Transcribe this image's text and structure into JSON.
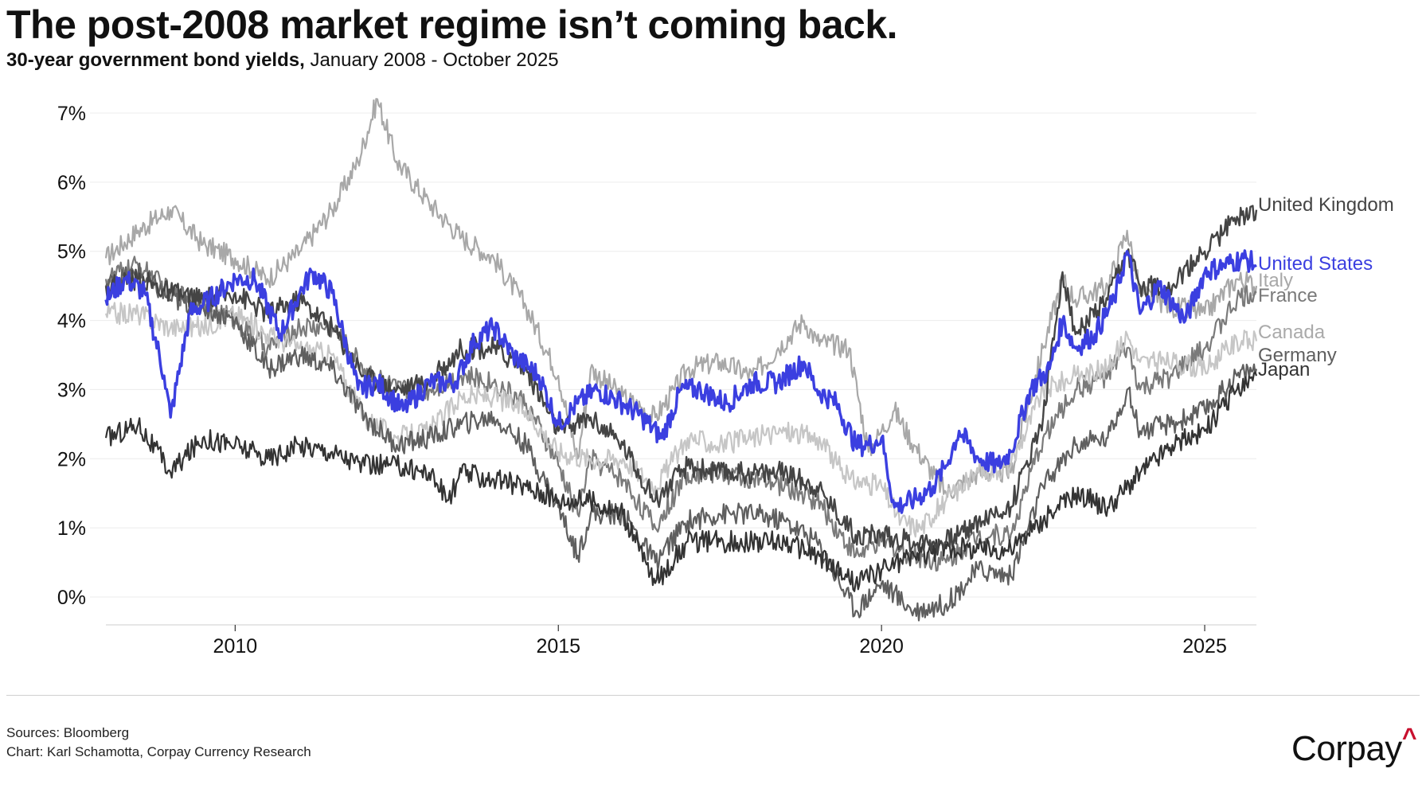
{
  "header": {
    "title": "The post-2008 market regime isn’t coming back.",
    "subtitle_bold": "30-year government bond yields,",
    "subtitle_rest": " January 2008 - October 2025"
  },
  "footer": {
    "sources": "Sources: Bloomberg",
    "credit": "Chart: Karl Schamotta, Corpay Currency Research"
  },
  "logo": {
    "text": "Corpay",
    "caret": "^"
  },
  "chart_data": {
    "type": "line",
    "title": "The post-2008 market regime isn’t coming back.",
    "subtitle": "30-year government bond yields, January 2008 - October 2025",
    "x_range": [
      2008.0,
      2025.8
    ],
    "y_range": [
      -0.3,
      7.2
    ],
    "y_ticks": [
      0,
      1,
      2,
      3,
      4,
      5,
      6,
      7
    ],
    "y_tick_labels": [
      "0%",
      "1%",
      "2%",
      "3%",
      "4%",
      "5%",
      "6%",
      "7%"
    ],
    "x_ticks": [
      2010,
      2015,
      2020,
      2025
    ],
    "x_tick_labels": [
      "2010",
      "2015",
      "2020",
      "2025"
    ],
    "grid": "horizontal",
    "legend": "direct labels at line ends (right)",
    "series": [
      {
        "name": "Italy",
        "color": "#a8a8a8",
        "width": 2.2,
        "x": [
          2008.0,
          2008.5,
          2009.0,
          2009.5,
          2010.0,
          2010.5,
          2011.0,
          2011.5,
          2011.9,
          2012.2,
          2012.5,
          2013.0,
          2013.5,
          2014.0,
          2014.5,
          2015.0,
          2015.3,
          2015.5,
          2016.0,
          2016.5,
          2016.8,
          2017.0,
          2017.5,
          2018.0,
          2018.4,
          2018.8,
          2019.0,
          2019.5,
          2019.8,
          2020.0,
          2020.2,
          2020.5,
          2021.0,
          2021.5,
          2022.0,
          2022.5,
          2022.8,
          2023.0,
          2023.5,
          2023.8,
          2024.0,
          2024.5,
          2025.0,
          2025.5,
          2025.8
        ],
        "y": [
          4.9,
          5.3,
          5.6,
          5.1,
          4.9,
          4.6,
          5.0,
          5.6,
          6.3,
          7.2,
          6.3,
          5.7,
          5.2,
          4.9,
          4.2,
          3.2,
          2.0,
          3.3,
          2.9,
          2.6,
          3.0,
          3.3,
          3.4,
          3.2,
          3.6,
          4.0,
          3.7,
          3.6,
          2.1,
          2.4,
          2.7,
          2.2,
          1.5,
          1.8,
          1.8,
          3.6,
          4.6,
          4.3,
          4.5,
          5.3,
          4.4,
          4.2,
          4.1,
          4.6,
          4.5
        ]
      },
      {
        "name": "France",
        "color": "#7a7a7a",
        "width": 2.2,
        "x": [
          2008.0,
          2008.5,
          2009.0,
          2009.5,
          2010.0,
          2010.5,
          2011.0,
          2011.5,
          2012.0,
          2012.5,
          2013.0,
          2013.5,
          2014.0,
          2014.5,
          2015.0,
          2015.3,
          2015.5,
          2016.0,
          2016.5,
          2017.0,
          2017.5,
          2018.0,
          2018.5,
          2019.0,
          2019.6,
          2020.0,
          2020.5,
          2021.0,
          2021.5,
          2022.0,
          2022.5,
          2023.0,
          2023.5,
          2023.8,
          2024.0,
          2024.5,
          2025.0,
          2025.5,
          2025.8
        ],
        "y": [
          4.6,
          4.8,
          4.4,
          4.3,
          4.0,
          3.6,
          3.9,
          3.9,
          3.3,
          3.0,
          3.0,
          3.2,
          3.1,
          2.8,
          1.9,
          1.2,
          2.0,
          1.7,
          1.0,
          1.8,
          1.8,
          1.7,
          1.6,
          1.4,
          0.6,
          0.8,
          0.6,
          0.5,
          0.9,
          0.9,
          2.3,
          3.0,
          3.2,
          3.6,
          3.0,
          3.2,
          3.6,
          4.3,
          4.4
        ]
      },
      {
        "name": "Canada",
        "color": "#c6c6c6",
        "width": 2.2,
        "x": [
          2008.0,
          2008.5,
          2009.0,
          2009.5,
          2010.0,
          2010.5,
          2011.0,
          2011.5,
          2012.0,
          2012.5,
          2013.0,
          2013.5,
          2014.0,
          2014.5,
          2015.0,
          2015.5,
          2016.0,
          2016.5,
          2017.0,
          2017.5,
          2018.0,
          2018.5,
          2019.0,
          2019.5,
          2020.0,
          2020.3,
          2020.6,
          2021.0,
          2021.5,
          2022.0,
          2022.5,
          2023.0,
          2023.5,
          2023.8,
          2024.0,
          2024.5,
          2025.0,
          2025.5,
          2025.8
        ],
        "y": [
          4.1,
          4.1,
          3.9,
          3.9,
          4.1,
          3.8,
          3.6,
          3.5,
          2.6,
          2.3,
          2.4,
          2.9,
          2.9,
          2.7,
          2.1,
          2.0,
          2.0,
          1.6,
          2.3,
          2.2,
          2.3,
          2.4,
          2.3,
          1.7,
          1.6,
          1.1,
          1.0,
          1.4,
          1.8,
          1.9,
          3.0,
          3.2,
          3.3,
          3.8,
          3.4,
          3.4,
          3.3,
          3.7,
          3.7
        ]
      },
      {
        "name": "Germany",
        "color": "#5f5f5f",
        "width": 2.2,
        "x": [
          2008.0,
          2008.5,
          2009.0,
          2009.5,
          2010.0,
          2010.5,
          2011.0,
          2011.5,
          2012.0,
          2012.5,
          2013.0,
          2013.5,
          2014.0,
          2014.5,
          2015.0,
          2015.3,
          2015.5,
          2016.0,
          2016.5,
          2017.0,
          2017.5,
          2018.0,
          2018.5,
          2019.0,
          2019.6,
          2020.0,
          2020.5,
          2021.0,
          2021.5,
          2022.0,
          2022.5,
          2023.0,
          2023.5,
          2023.8,
          2024.0,
          2024.5,
          2025.0,
          2025.5,
          2025.8
        ],
        "y": [
          4.5,
          4.7,
          4.3,
          4.2,
          4.0,
          3.3,
          3.5,
          3.3,
          2.6,
          2.2,
          2.3,
          2.5,
          2.6,
          2.2,
          1.3,
          0.6,
          1.2,
          1.2,
          0.5,
          1.1,
          1.2,
          1.2,
          1.1,
          0.8,
          -0.2,
          0.2,
          -0.2,
          -0.1,
          0.4,
          0.3,
          1.6,
          2.2,
          2.3,
          3.0,
          2.4,
          2.5,
          2.7,
          3.2,
          3.3
        ]
      },
      {
        "name": "Japan",
        "color": "#333333",
        "width": 2.2,
        "x": [
          2008.0,
          2008.5,
          2009.0,
          2009.5,
          2010.0,
          2010.5,
          2011.0,
          2011.5,
          2012.0,
          2012.5,
          2013.0,
          2013.3,
          2013.5,
          2014.0,
          2014.5,
          2015.0,
          2015.5,
          2016.0,
          2016.5,
          2017.0,
          2017.5,
          2018.0,
          2018.5,
          2019.0,
          2019.6,
          2020.0,
          2020.5,
          2021.0,
          2021.5,
          2022.0,
          2022.5,
          2023.0,
          2023.5,
          2024.0,
          2024.5,
          2025.0,
          2025.5,
          2025.8
        ],
        "y": [
          2.3,
          2.5,
          1.8,
          2.3,
          2.2,
          2.0,
          2.2,
          2.1,
          1.9,
          1.9,
          1.8,
          1.4,
          1.8,
          1.7,
          1.6,
          1.4,
          1.4,
          1.2,
          0.2,
          0.8,
          0.8,
          0.8,
          0.8,
          0.6,
          0.2,
          0.4,
          0.6,
          0.7,
          0.7,
          0.7,
          1.1,
          1.5,
          1.3,
          1.8,
          2.2,
          2.4,
          3.0,
          3.2
        ]
      },
      {
        "name": "United Kingdom",
        "color": "#444444",
        "width": 2.4,
        "x": [
          2008.0,
          2008.5,
          2009.0,
          2009.5,
          2010.0,
          2010.5,
          2011.0,
          2011.5,
          2012.0,
          2012.5,
          2013.0,
          2013.5,
          2014.0,
          2014.5,
          2015.0,
          2015.5,
          2016.0,
          2016.5,
          2017.0,
          2017.5,
          2018.0,
          2018.5,
          2019.0,
          2019.6,
          2020.0,
          2020.5,
          2021.0,
          2021.5,
          2022.0,
          2022.5,
          2022.8,
          2023.0,
          2023.5,
          2023.8,
          2024.0,
          2024.5,
          2025.0,
          2025.5,
          2025.8
        ],
        "y": [
          4.5,
          4.6,
          4.4,
          4.3,
          4.4,
          4.1,
          4.3,
          3.9,
          3.2,
          3.0,
          3.1,
          3.6,
          3.6,
          3.3,
          2.4,
          2.6,
          2.2,
          1.4,
          1.9,
          1.8,
          1.8,
          1.8,
          1.6,
          0.9,
          0.9,
          0.8,
          0.8,
          1.1,
          1.3,
          2.6,
          4.7,
          3.8,
          4.3,
          5.0,
          4.5,
          4.5,
          5.0,
          5.5,
          5.6
        ]
      },
      {
        "name": "United States",
        "color": "#3b3fe0",
        "width": 3.4,
        "x": [
          2008.0,
          2008.3,
          2008.6,
          2008.9,
          2009.0,
          2009.3,
          2009.6,
          2010.0,
          2010.3,
          2010.7,
          2011.0,
          2011.2,
          2011.5,
          2011.9,
          2012.2,
          2012.6,
          2013.0,
          2013.4,
          2013.7,
          2014.0,
          2014.3,
          2014.7,
          2015.0,
          2015.3,
          2015.6,
          2016.0,
          2016.3,
          2016.6,
          2016.9,
          2017.2,
          2017.6,
          2018.0,
          2018.4,
          2018.8,
          2019.0,
          2019.3,
          2019.6,
          2019.8,
          2020.0,
          2020.2,
          2020.5,
          2020.8,
          2021.0,
          2021.2,
          2021.5,
          2021.8,
          2022.0,
          2022.3,
          2022.6,
          2022.8,
          2023.0,
          2023.3,
          2023.6,
          2023.8,
          2024.0,
          2024.3,
          2024.7,
          2025.0,
          2025.3,
          2025.6,
          2025.8
        ],
        "y": [
          4.3,
          4.6,
          4.4,
          3.2,
          2.6,
          4.1,
          4.3,
          4.6,
          4.6,
          3.8,
          4.4,
          4.7,
          4.4,
          3.0,
          3.1,
          2.7,
          3.1,
          3.1,
          3.7,
          3.9,
          3.5,
          3.2,
          2.5,
          2.8,
          3.0,
          2.8,
          2.6,
          2.3,
          3.0,
          3.0,
          2.8,
          3.1,
          3.1,
          3.4,
          3.0,
          2.8,
          2.2,
          2.2,
          2.3,
          1.3,
          1.4,
          1.6,
          1.9,
          2.4,
          2.0,
          1.9,
          2.1,
          3.0,
          3.3,
          4.0,
          3.6,
          3.8,
          4.3,
          5.0,
          4.1,
          4.5,
          4.0,
          4.7,
          4.8,
          4.9,
          4.8
        ]
      }
    ]
  }
}
